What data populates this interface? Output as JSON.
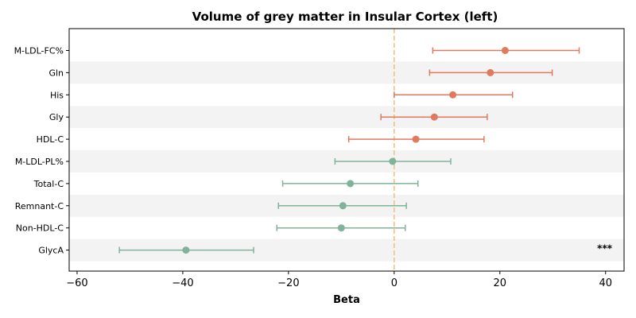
{
  "chart_data": {
    "type": "forest",
    "title": "Volume of grey matter in Insular Cortex (left)",
    "xlabel": "Beta",
    "ylabel": "",
    "xlim": [
      -61.5,
      43.5
    ],
    "xticks": [
      -60,
      -40,
      -20,
      0,
      20,
      40
    ],
    "xtick_labels": [
      "−60",
      "−40",
      "−20",
      "0",
      "20",
      "40"
    ],
    "reference_line": 0,
    "colors": {
      "positive": "#e07a5f",
      "negative": "#81b29a",
      "reference": "#f2c07a",
      "band": "#f3f3f3"
    },
    "rows": [
      {
        "label": "M-LDL-FC%",
        "beta": 21.0,
        "ci_low": 7.3,
        "ci_high": 35.0,
        "annotation": ""
      },
      {
        "label": "Gln",
        "beta": 18.2,
        "ci_low": 6.7,
        "ci_high": 29.9,
        "annotation": ""
      },
      {
        "label": "His",
        "beta": 11.1,
        "ci_low": 0.0,
        "ci_high": 22.4,
        "annotation": ""
      },
      {
        "label": "Gly",
        "beta": 7.6,
        "ci_low": -2.5,
        "ci_high": 17.6,
        "annotation": ""
      },
      {
        "label": "HDL-C",
        "beta": 4.1,
        "ci_low": -8.6,
        "ci_high": 17.0,
        "annotation": ""
      },
      {
        "label": "M-LDL-PL%",
        "beta": -0.3,
        "ci_low": -11.2,
        "ci_high": 10.7,
        "annotation": ""
      },
      {
        "label": "Total-C",
        "beta": -8.3,
        "ci_low": -21.1,
        "ci_high": 4.5,
        "annotation": ""
      },
      {
        "label": "Remnant-C",
        "beta": -9.7,
        "ci_low": -21.9,
        "ci_high": 2.3,
        "annotation": ""
      },
      {
        "label": "Non-HDL-C",
        "beta": -10.0,
        "ci_low": -22.2,
        "ci_high": 2.1,
        "annotation": ""
      },
      {
        "label": "GlycA",
        "beta": -39.4,
        "ci_low": -52.0,
        "ci_high": -26.6,
        "annotation": "***"
      }
    ]
  }
}
